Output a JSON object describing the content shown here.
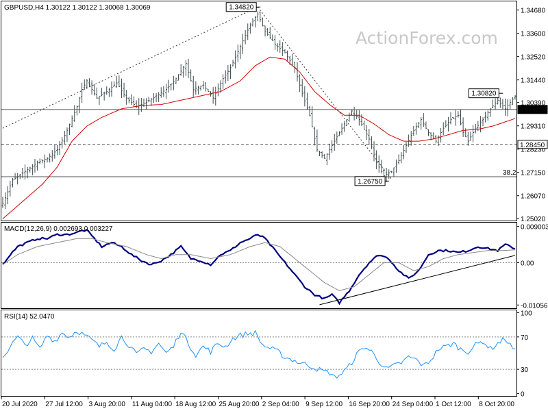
{
  "chart_data": [
    {
      "type": "candlestick",
      "symbol_label": "GBPUSD,H4  1.30122 1.30122 1.30068 1.30069",
      "watermark": "ActionForex.com",
      "y_ticks": [
        "1.34680",
        "1.33600",
        "1.32520",
        "1.31440",
        "1.30390",
        "1.29310",
        "1.28230",
        "1.27150",
        "1.26070",
        "1.25020"
      ],
      "y_tick_values": [
        1.3468,
        1.336,
        1.3252,
        1.3144,
        1.3039,
        1.2931,
        1.2823,
        1.2715,
        1.2607,
        1.2502
      ],
      "ylim": [
        1.2495,
        1.3505
      ],
      "x_tick_labels": [
        "20 Jul 2020",
        "27 Jul 12:00",
        "3 Aug 20:00",
        "11 Aug 04:00",
        "18 Aug 12:00",
        "25 Aug 20:00",
        "2 Sep 04:00",
        "9 Sep 12:00",
        "16 Sep 20:00",
        "24 Sep 04:00",
        "1 Oct 12:00",
        "8 Oct 20:00"
      ],
      "price_path": [
        [
          0,
          1.257
        ],
        [
          4,
          1.268
        ],
        [
          9,
          1.272
        ],
        [
          14,
          1.276
        ],
        [
          18,
          1.278
        ],
        [
          22,
          1.282
        ],
        [
          26,
          1.291
        ],
        [
          30,
          1.302
        ],
        [
          32,
          1.31
        ],
        [
          34,
          1.314
        ],
        [
          38,
          1.306
        ],
        [
          42,
          1.309
        ],
        [
          46,
          1.313
        ],
        [
          50,
          1.306
        ],
        [
          54,
          1.302
        ],
        [
          58,
          1.304
        ],
        [
          62,
          1.307
        ],
        [
          66,
          1.31
        ],
        [
          70,
          1.315
        ],
        [
          74,
          1.322
        ],
        [
          77,
          1.31
        ],
        [
          81,
          1.312
        ],
        [
          85,
          1.306
        ],
        [
          89,
          1.315
        ],
        [
          92,
          1.32
        ],
        [
          96,
          1.33
        ],
        [
          100,
          1.34
        ],
        [
          103,
          1.345
        ],
        [
          106,
          1.337
        ],
        [
          110,
          1.331
        ],
        [
          114,
          1.327
        ],
        [
          118,
          1.32
        ],
        [
          121,
          1.308
        ],
        [
          124,
          1.298
        ],
        [
          127,
          1.282
        ],
        [
          130,
          1.278
        ],
        [
          134,
          1.286
        ],
        [
          138,
          1.294
        ],
        [
          141,
          1.3
        ],
        [
          144,
          1.296
        ],
        [
          148,
          1.287
        ],
        [
          151,
          1.276
        ],
        [
          154,
          1.27
        ],
        [
          157,
          1.272
        ],
        [
          160,
          1.277
        ],
        [
          163,
          1.284
        ],
        [
          166,
          1.291
        ],
        [
          169,
          1.296
        ],
        [
          172,
          1.29
        ],
        [
          175,
          1.286
        ],
        [
          178,
          1.292
        ],
        [
          181,
          1.296
        ],
        [
          184,
          1.298
        ],
        [
          186,
          1.29
        ],
        [
          188,
          1.286
        ],
        [
          191,
          1.292
        ],
        [
          194,
          1.296
        ],
        [
          197,
          1.301
        ],
        [
          200,
          1.305
        ],
        [
          203,
          1.301
        ],
        [
          207,
          1.3069
        ]
      ],
      "ma_path": [
        [
          0,
          1.25
        ],
        [
          8,
          1.258
        ],
        [
          16,
          1.266
        ],
        [
          22,
          1.274
        ],
        [
          28,
          1.286
        ],
        [
          34,
          1.293
        ],
        [
          40,
          1.297
        ],
        [
          48,
          1.301
        ],
        [
          56,
          1.3025
        ],
        [
          64,
          1.303
        ],
        [
          72,
          1.305
        ],
        [
          80,
          1.307
        ],
        [
          88,
          1.309
        ],
        [
          96,
          1.314
        ],
        [
          102,
          1.321
        ],
        [
          108,
          1.325
        ],
        [
          114,
          1.324
        ],
        [
          120,
          1.318
        ],
        [
          126,
          1.309
        ],
        [
          132,
          1.303
        ],
        [
          138,
          1.298
        ],
        [
          144,
          1.298
        ],
        [
          150,
          1.294
        ],
        [
          156,
          1.289
        ],
        [
          162,
          1.286
        ],
        [
          168,
          1.286
        ],
        [
          174,
          1.287
        ],
        [
          180,
          1.289
        ],
        [
          186,
          1.291
        ],
        [
          192,
          1.2915
        ],
        [
          198,
          1.293
        ],
        [
          207,
          1.2965
        ]
      ],
      "bar_count": 208,
      "annotations": [
        {
          "text": "1.34820",
          "price": 1.3482,
          "at": 103
        },
        {
          "text": "1.26750",
          "price": 1.2675,
          "at": 155
        },
        {
          "text": "1.30820",
          "price": 1.3082,
          "at": 201
        }
      ],
      "right_labels": [
        {
          "text": "1.30069",
          "price": 1.30069,
          "style": "current"
        },
        {
          "text": "1.28450",
          "price": 1.2845,
          "style": "level"
        }
      ],
      "levels": [
        {
          "price": 1.30069,
          "style": "solid"
        },
        {
          "price": 1.2845,
          "style": "dashed"
        },
        {
          "price": 1.2695,
          "style": "solid"
        }
      ],
      "fib_label": "38.2",
      "trendlines": [
        {
          "from": [
            0,
            1.292
          ],
          "to": [
            103,
            1.3482
          ],
          "style": "dotted"
        },
        {
          "from": [
            103,
            1.3482
          ],
          "to": [
            157,
            1.2685
          ],
          "style": "dotted"
        }
      ]
    },
    {
      "type": "line",
      "title": "MACD(12,26,9) 0.002693 0.003227",
      "y_ticks": [
        "0.009003",
        "0.00",
        "-0.010566"
      ],
      "y_tick_values": [
        0.009003,
        0.0,
        -0.010566
      ],
      "ylim": [
        -0.0112,
        0.0098
      ],
      "series": [
        {
          "values": [
            [
              0,
              -0.0005
            ],
            [
              3,
              0.002
            ],
            [
              6,
              0.004
            ],
            [
              10,
              0.005
            ],
            [
              14,
              0.006
            ],
            [
              18,
              0.006
            ],
            [
              22,
              0.007
            ],
            [
              26,
              0.007
            ],
            [
              30,
              0.0075
            ],
            [
              32,
              0.008
            ],
            [
              34,
              0.008
            ],
            [
              37,
              0.006
            ],
            [
              40,
              0.004
            ],
            [
              44,
              0.005
            ],
            [
              48,
              0.004
            ],
            [
              52,
              0.002
            ],
            [
              56,
              0.0005
            ],
            [
              60,
              -0.0005
            ],
            [
              64,
              0.0005
            ],
            [
              68,
              0.002
            ],
            [
              72,
              0.004
            ],
            [
              76,
              0.001
            ],
            [
              80,
              0.0005
            ],
            [
              84,
              -0.0005
            ],
            [
              88,
              0.002
            ],
            [
              92,
              0.003
            ],
            [
              96,
              0.005
            ],
            [
              100,
              0.006
            ],
            [
              103,
              0.007
            ],
            [
              106,
              0.006
            ],
            [
              110,
              0.003
            ],
            [
              114,
              0.0
            ],
            [
              118,
              -0.003
            ],
            [
              122,
              -0.006
            ],
            [
              126,
              -0.008
            ],
            [
              130,
              -0.009
            ],
            [
              133,
              -0.008
            ],
            [
              136,
              -0.01
            ],
            [
              140,
              -0.007
            ],
            [
              144,
              -0.003
            ],
            [
              148,
              0.0
            ],
            [
              152,
              0.002
            ],
            [
              156,
              0.001
            ],
            [
              160,
              -0.002
            ],
            [
              164,
              -0.004
            ],
            [
              168,
              -0.002
            ],
            [
              172,
              0.002
            ],
            [
              176,
              0.003
            ],
            [
              180,
              0.003
            ],
            [
              184,
              0.0025
            ],
            [
              188,
              0.003
            ],
            [
              192,
              0.004
            ],
            [
              196,
              0.0035
            ],
            [
              200,
              0.003
            ],
            [
              203,
              0.0045
            ],
            [
              207,
              0.0035
            ]
          ]
        },
        {
          "values": [
            [
              0,
              -0.0005
            ],
            [
              6,
              0.002
            ],
            [
              14,
              0.004
            ],
            [
              22,
              0.005
            ],
            [
              30,
              0.006
            ],
            [
              36,
              0.006
            ],
            [
              42,
              0.005
            ],
            [
              50,
              0.004
            ],
            [
              58,
              0.002
            ],
            [
              64,
              0.001
            ],
            [
              70,
              0.002
            ],
            [
              76,
              0.002
            ],
            [
              84,
              0.001
            ],
            [
              92,
              0.002
            ],
            [
              100,
              0.004
            ],
            [
              106,
              0.005
            ],
            [
              112,
              0.004
            ],
            [
              118,
              0.001
            ],
            [
              124,
              -0.002
            ],
            [
              130,
              -0.005
            ],
            [
              136,
              -0.007
            ],
            [
              142,
              -0.006
            ],
            [
              148,
              -0.003
            ],
            [
              154,
              0.0
            ],
            [
              160,
              0.0
            ],
            [
              166,
              -0.002
            ],
            [
              172,
              -0.001
            ],
            [
              178,
              0.001
            ],
            [
              184,
              0.002
            ],
            [
              190,
              0.0025
            ],
            [
              196,
              0.003
            ],
            [
              202,
              0.003
            ],
            [
              207,
              0.0032
            ]
          ]
        }
      ],
      "trendline": {
        "from": [
          128,
          -0.0105
        ],
        "to": [
          207,
          0.0018
        ]
      }
    },
    {
      "type": "line",
      "title": "RSI(14) 52.0470",
      "y_ticks": [
        "100",
        "70",
        "30",
        "0"
      ],
      "y_tick_values": [
        100,
        70,
        30,
        0
      ],
      "ylim": [
        -2,
        102
      ],
      "levels": [
        70,
        30
      ],
      "series": [
        {
          "values": [
            [
              0,
              45
            ],
            [
              3,
              58
            ],
            [
              6,
              70
            ],
            [
              9,
              60
            ],
            [
              12,
              68
            ],
            [
              15,
              55
            ],
            [
              18,
              72
            ],
            [
              21,
              65
            ],
            [
              24,
              75
            ],
            [
              27,
              70
            ],
            [
              30,
              78
            ],
            [
              33,
              72
            ],
            [
              36,
              66
            ],
            [
              39,
              58
            ],
            [
              42,
              64
            ],
            [
              45,
              55
            ],
            [
              48,
              70
            ],
            [
              51,
              60
            ],
            [
              54,
              48
            ],
            [
              57,
              55
            ],
            [
              60,
              52
            ],
            [
              63,
              62
            ],
            [
              66,
              50
            ],
            [
              69,
              58
            ],
            [
              72,
              78
            ],
            [
              75,
              62
            ],
            [
              78,
              48
            ],
            [
              81,
              58
            ],
            [
              84,
              52
            ],
            [
              87,
              62
            ],
            [
              90,
              58
            ],
            [
              93,
              68
            ],
            [
              96,
              72
            ],
            [
              99,
              74
            ],
            [
              102,
              75
            ],
            [
              105,
              60
            ],
            [
              108,
              56
            ],
            [
              111,
              52
            ],
            [
              114,
              45
            ],
            [
              117,
              42
            ],
            [
              120,
              38
            ],
            [
              123,
              36
            ],
            [
              126,
              32
            ],
            [
              129,
              28
            ],
            [
              132,
              26
            ],
            [
              134,
              20
            ],
            [
              137,
              25
            ],
            [
              140,
              34
            ],
            [
              143,
              48
            ],
            [
              146,
              58
            ],
            [
              149,
              52
            ],
            [
              152,
              40
            ],
            [
              155,
              30
            ],
            [
              158,
              34
            ],
            [
              161,
              38
            ],
            [
              164,
              45
            ],
            [
              167,
              42
            ],
            [
              170,
              34
            ],
            [
              173,
              42
            ],
            [
              176,
              55
            ],
            [
              179,
              58
            ],
            [
              182,
              62
            ],
            [
              185,
              55
            ],
            [
              188,
              52
            ],
            [
              191,
              60
            ],
            [
              194,
              65
            ],
            [
              197,
              55
            ],
            [
              200,
              62
            ],
            [
              203,
              68
            ],
            [
              207,
              52
            ]
          ]
        }
      ]
    }
  ]
}
